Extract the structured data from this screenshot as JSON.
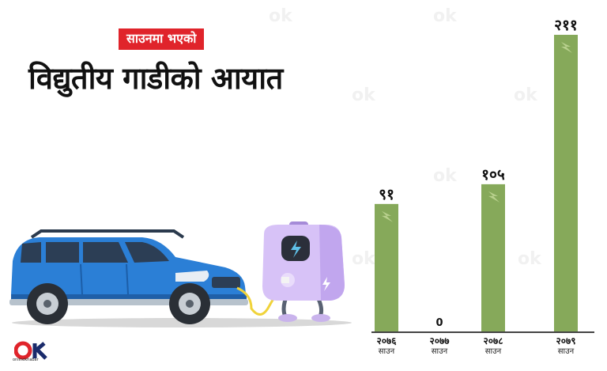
{
  "header": {
    "tag": "साउनमा भएको",
    "title": "विद्युतीय गाडीको आयात"
  },
  "brand": {
    "logo_text": "onlinekhabar"
  },
  "colors": {
    "bar": "#86a95a",
    "tag_bg": "#e0242b",
    "axis": "#444444"
  },
  "chart_data": {
    "type": "bar",
    "title": "विद्युतीय गाडीको आयात",
    "categories": [
      "२०७६ साउन",
      "२०७७ साउन",
      "२०७८ साउन",
      "२०७९ साउन"
    ],
    "category_years": [
      "२०७६",
      "२०७७",
      "२०७८",
      "२०७९"
    ],
    "category_month": "साउन",
    "values": [
      91,
      0,
      105,
      211
    ],
    "value_labels": [
      "९१",
      "0",
      "१०५",
      "२११"
    ],
    "ylim": [
      0,
      211
    ],
    "grid": false,
    "legend": "none"
  }
}
